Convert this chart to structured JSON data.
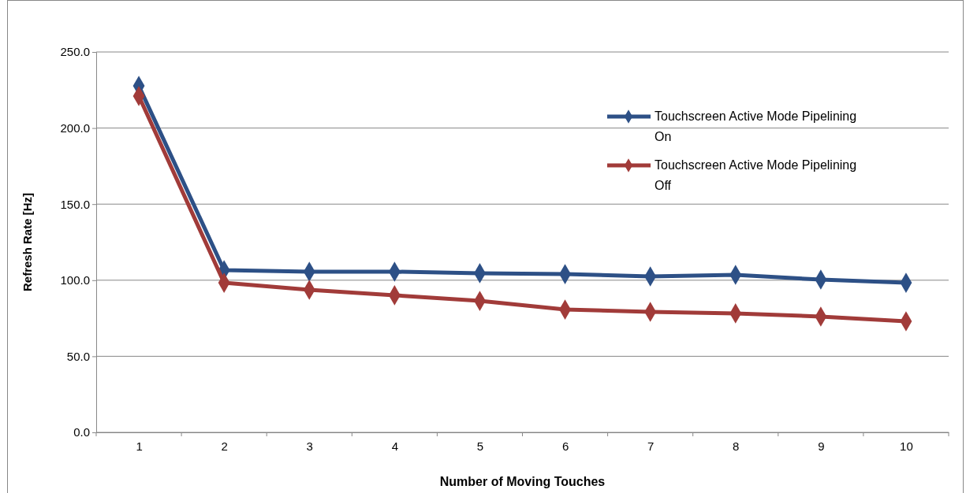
{
  "chart_data": {
    "type": "line",
    "xlabel": "Number of Moving Touches",
    "ylabel": "Refresh Rate [Hz]",
    "categories": [
      "1",
      "2",
      "3",
      "4",
      "5",
      "6",
      "7",
      "8",
      "9",
      "10"
    ],
    "series": [
      {
        "name": "Touchscreen Active Mode Pipelining On",
        "color": "#2d5086",
        "values": [
          227.7,
          106.6,
          105.6,
          105.6,
          104.6,
          104.0,
          102.5,
          103.5,
          100.4,
          98.3
        ]
      },
      {
        "name": "Touchscreen Active Mode Pipelining Off",
        "color": "#a13b39",
        "values": [
          221.0,
          98.3,
          93.7,
          90.1,
          86.4,
          80.7,
          79.2,
          78.2,
          76.1,
          73.0
        ]
      }
    ],
    "ylim": [
      0,
      250
    ],
    "yticks": [
      {
        "value": 0,
        "label": "0.0"
      },
      {
        "value": 50,
        "label": "50.0"
      },
      {
        "value": 100,
        "label": "100.0"
      },
      {
        "value": 150,
        "label": "150.0"
      },
      {
        "value": 200,
        "label": "200.0"
      },
      {
        "value": 250,
        "label": "250.0"
      }
    ],
    "grid": "y",
    "legend": "top right",
    "marker": "diamond",
    "line_style": "solid"
  }
}
